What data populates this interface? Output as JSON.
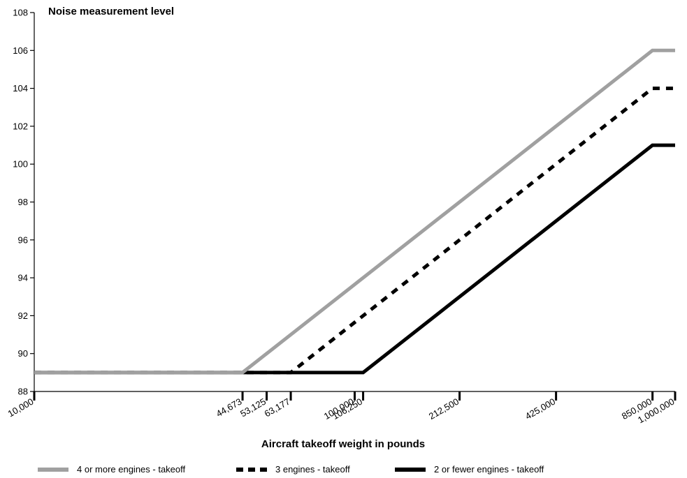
{
  "chart_data": {
    "type": "line",
    "ylabel": "Noise measurement level",
    "xlabel": "Aircraft takeoff weight in pounds",
    "ylim": [
      88,
      108
    ],
    "yticks": [
      88,
      90,
      92,
      94,
      96,
      98,
      100,
      102,
      104,
      106,
      108
    ],
    "x_scale": "log",
    "xlim": [
      10000,
      1000000
    ],
    "xticks": [
      {
        "value": 10000,
        "label": "10,000"
      },
      {
        "value": 44673,
        "label": "44,673"
      },
      {
        "value": 53125,
        "label": "53,125"
      },
      {
        "value": 63177,
        "label": "63,177"
      },
      {
        "value": 100000,
        "label": "100,000"
      },
      {
        "value": 106250,
        "label": "106,250"
      },
      {
        "value": 212500,
        "label": "212,500"
      },
      {
        "value": 425000,
        "label": "425,000"
      },
      {
        "value": 850000,
        "label": "850,000"
      },
      {
        "value": 1000000,
        "label": "1,000,000"
      }
    ],
    "grid": false,
    "legend_position": "bottom",
    "series": [
      {
        "name": "4 or more engines - takeoff",
        "color": "#a0a0a0",
        "style": "solid",
        "x": [
          10000,
          44673,
          850000,
          1000000
        ],
        "y": [
          89,
          89,
          106,
          106
        ]
      },
      {
        "name": "3 engines - takeoff",
        "color": "#000000",
        "style": "dashed",
        "x": [
          10000,
          63177,
          850000,
          1000000
        ],
        "y": [
          89,
          89,
          104,
          104
        ]
      },
      {
        "name": "2 or fewer engines - takeoff",
        "color": "#000000",
        "style": "solid",
        "x": [
          10000,
          106250,
          850000,
          1000000
        ],
        "y": [
          89,
          89,
          101,
          101
        ]
      }
    ]
  }
}
